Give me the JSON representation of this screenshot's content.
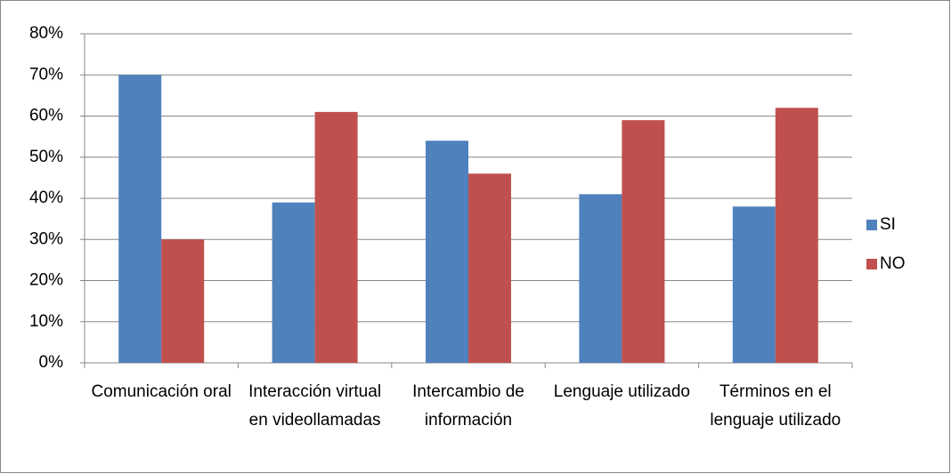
{
  "chart_data": {
    "type": "bar",
    "categories": [
      "Comunicación oral",
      "Interacción virtual en videollamadas",
      "Intercambio de información",
      "Lenguaje utilizado",
      "Términos en el lenguaje utilizado"
    ],
    "series": [
      {
        "name": "SI",
        "color": "#4f81bd",
        "values": [
          70,
          39,
          54,
          41,
          38
        ]
      },
      {
        "name": "NO",
        "color": "#c0504d",
        "values": [
          30,
          61,
          46,
          59,
          62
        ]
      }
    ],
    "ylim": [
      0,
      80
    ],
    "yticks": [
      {
        "value": 0,
        "label": "0%"
      },
      {
        "value": 10,
        "label": "10%"
      },
      {
        "value": 20,
        "label": "20%"
      },
      {
        "value": 30,
        "label": "30%"
      },
      {
        "value": 40,
        "label": "40%"
      },
      {
        "value": 50,
        "label": "50%"
      },
      {
        "value": 60,
        "label": "60%"
      },
      {
        "value": 70,
        "label": "70%"
      },
      {
        "value": 80,
        "label": "80%"
      }
    ],
    "grid": true,
    "legend": "right"
  }
}
